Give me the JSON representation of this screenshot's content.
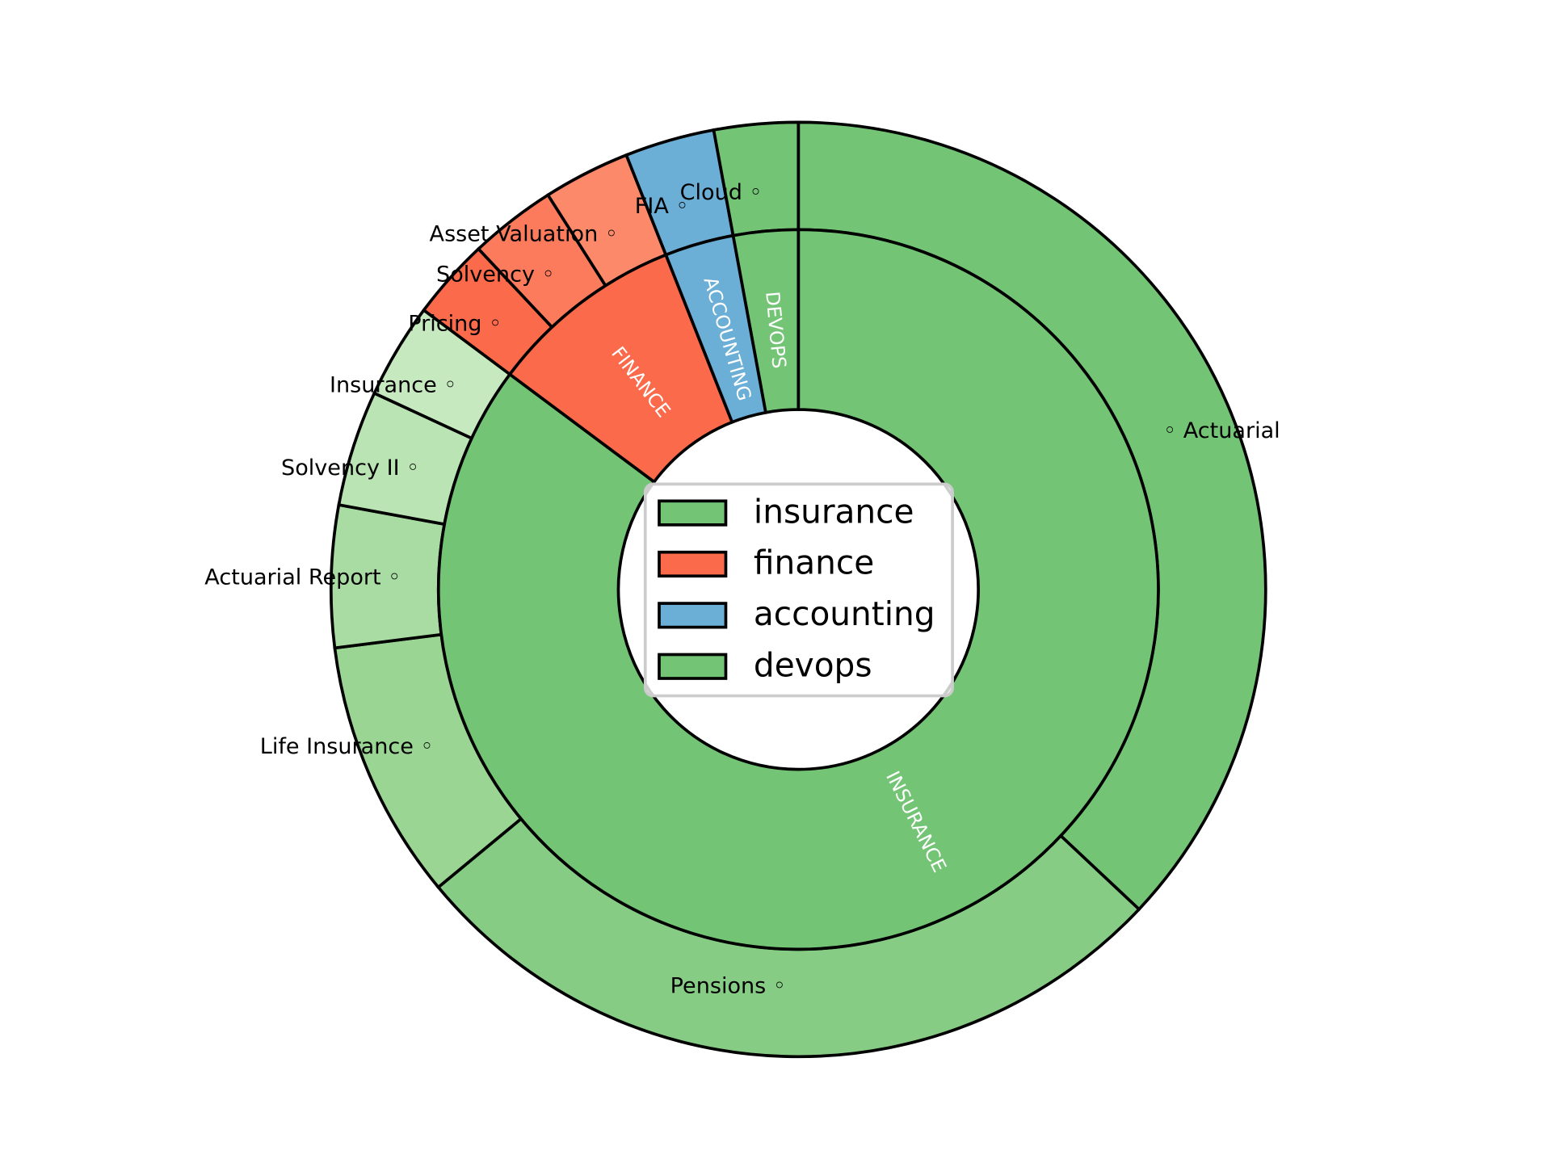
{
  "chart_data": {
    "type": "pie",
    "subtype": "nested-donut",
    "start_angle_deg": 90,
    "direction": "clockwise",
    "inner_ring": [
      {
        "label": "INSURANCE",
        "value": 85.2,
        "color": "#74c476"
      },
      {
        "label": "FINANCE",
        "value": 8.8,
        "color": "#fb6a4a"
      },
      {
        "label": "ACCOUNTING",
        "value": 3.1,
        "color": "#6baed6"
      },
      {
        "label": "DEVOPS",
        "value": 2.9,
        "color": "#74c476"
      }
    ],
    "outer_ring": [
      {
        "label": "Actuarial",
        "value": 37.0,
        "color": "#74c476"
      },
      {
        "label": "Pensions",
        "value": 27.0,
        "color": "#86cc84"
      },
      {
        "label": "Life Insurance",
        "value": 9.0,
        "color": "#9bd594"
      },
      {
        "label": "Actuarial Report",
        "value": 4.9,
        "color": "#a9dca3"
      },
      {
        "label": "Solvency II",
        "value": 4.0,
        "color": "#bae4b3"
      },
      {
        "label": "Insurance",
        "value": 3.3,
        "color": "#c7e9c0"
      },
      {
        "label": "Pricing",
        "value": 2.8,
        "color": "#fb6a4a"
      },
      {
        "label": "Solvency",
        "value": 3.0,
        "color": "#fc7b5c"
      },
      {
        "label": "Asset Valuation",
        "value": 3.0,
        "color": "#fc8a6a"
      },
      {
        "label": "FIA",
        "value": 3.1,
        "color": "#6baed6"
      },
      {
        "label": "Cloud",
        "value": 2.9,
        "color": "#74c476"
      }
    ],
    "label_marker": "◦",
    "legend": {
      "placement": "center",
      "entries": [
        {
          "label": "insurance",
          "color": "#74c476"
        },
        {
          "label": "finance",
          "color": "#fb6a4a"
        },
        {
          "label": "accounting",
          "color": "#6baed6"
        },
        {
          "label": "devops",
          "color": "#74c476"
        }
      ]
    }
  }
}
